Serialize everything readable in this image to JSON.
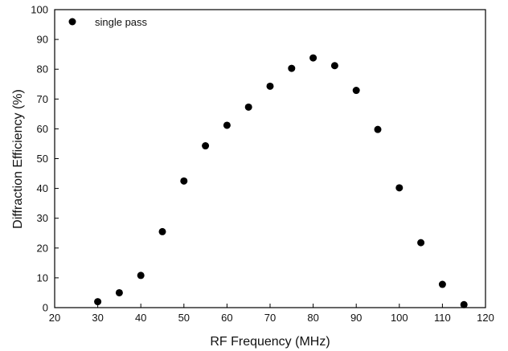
{
  "chart_data": {
    "type": "scatter",
    "xlabel": "RF Frequency (MHz)",
    "ylabel": "Diffraction Efficiency (%)",
    "xlim": [
      20,
      120
    ],
    "ylim": [
      0,
      100
    ],
    "xticks": [
      20,
      30,
      40,
      50,
      60,
      70,
      80,
      90,
      100,
      110,
      120
    ],
    "yticks": [
      0,
      10,
      20,
      30,
      40,
      50,
      60,
      70,
      80,
      90,
      100
    ],
    "grid": false,
    "legend": "top-left",
    "series": [
      {
        "name": "single pass",
        "marker": "circle",
        "color": "#000000",
        "x": [
          30,
          35,
          40,
          45,
          50,
          55,
          60,
          65,
          70,
          75,
          80,
          85,
          90,
          95,
          100,
          105,
          110,
          115
        ],
        "y": [
          2,
          5,
          10.8,
          25.5,
          42.5,
          54.3,
          61.2,
          67.3,
          74.3,
          80.3,
          83.8,
          81.2,
          72.9,
          59.8,
          40.2,
          21.8,
          7.8,
          1
        ]
      }
    ]
  }
}
